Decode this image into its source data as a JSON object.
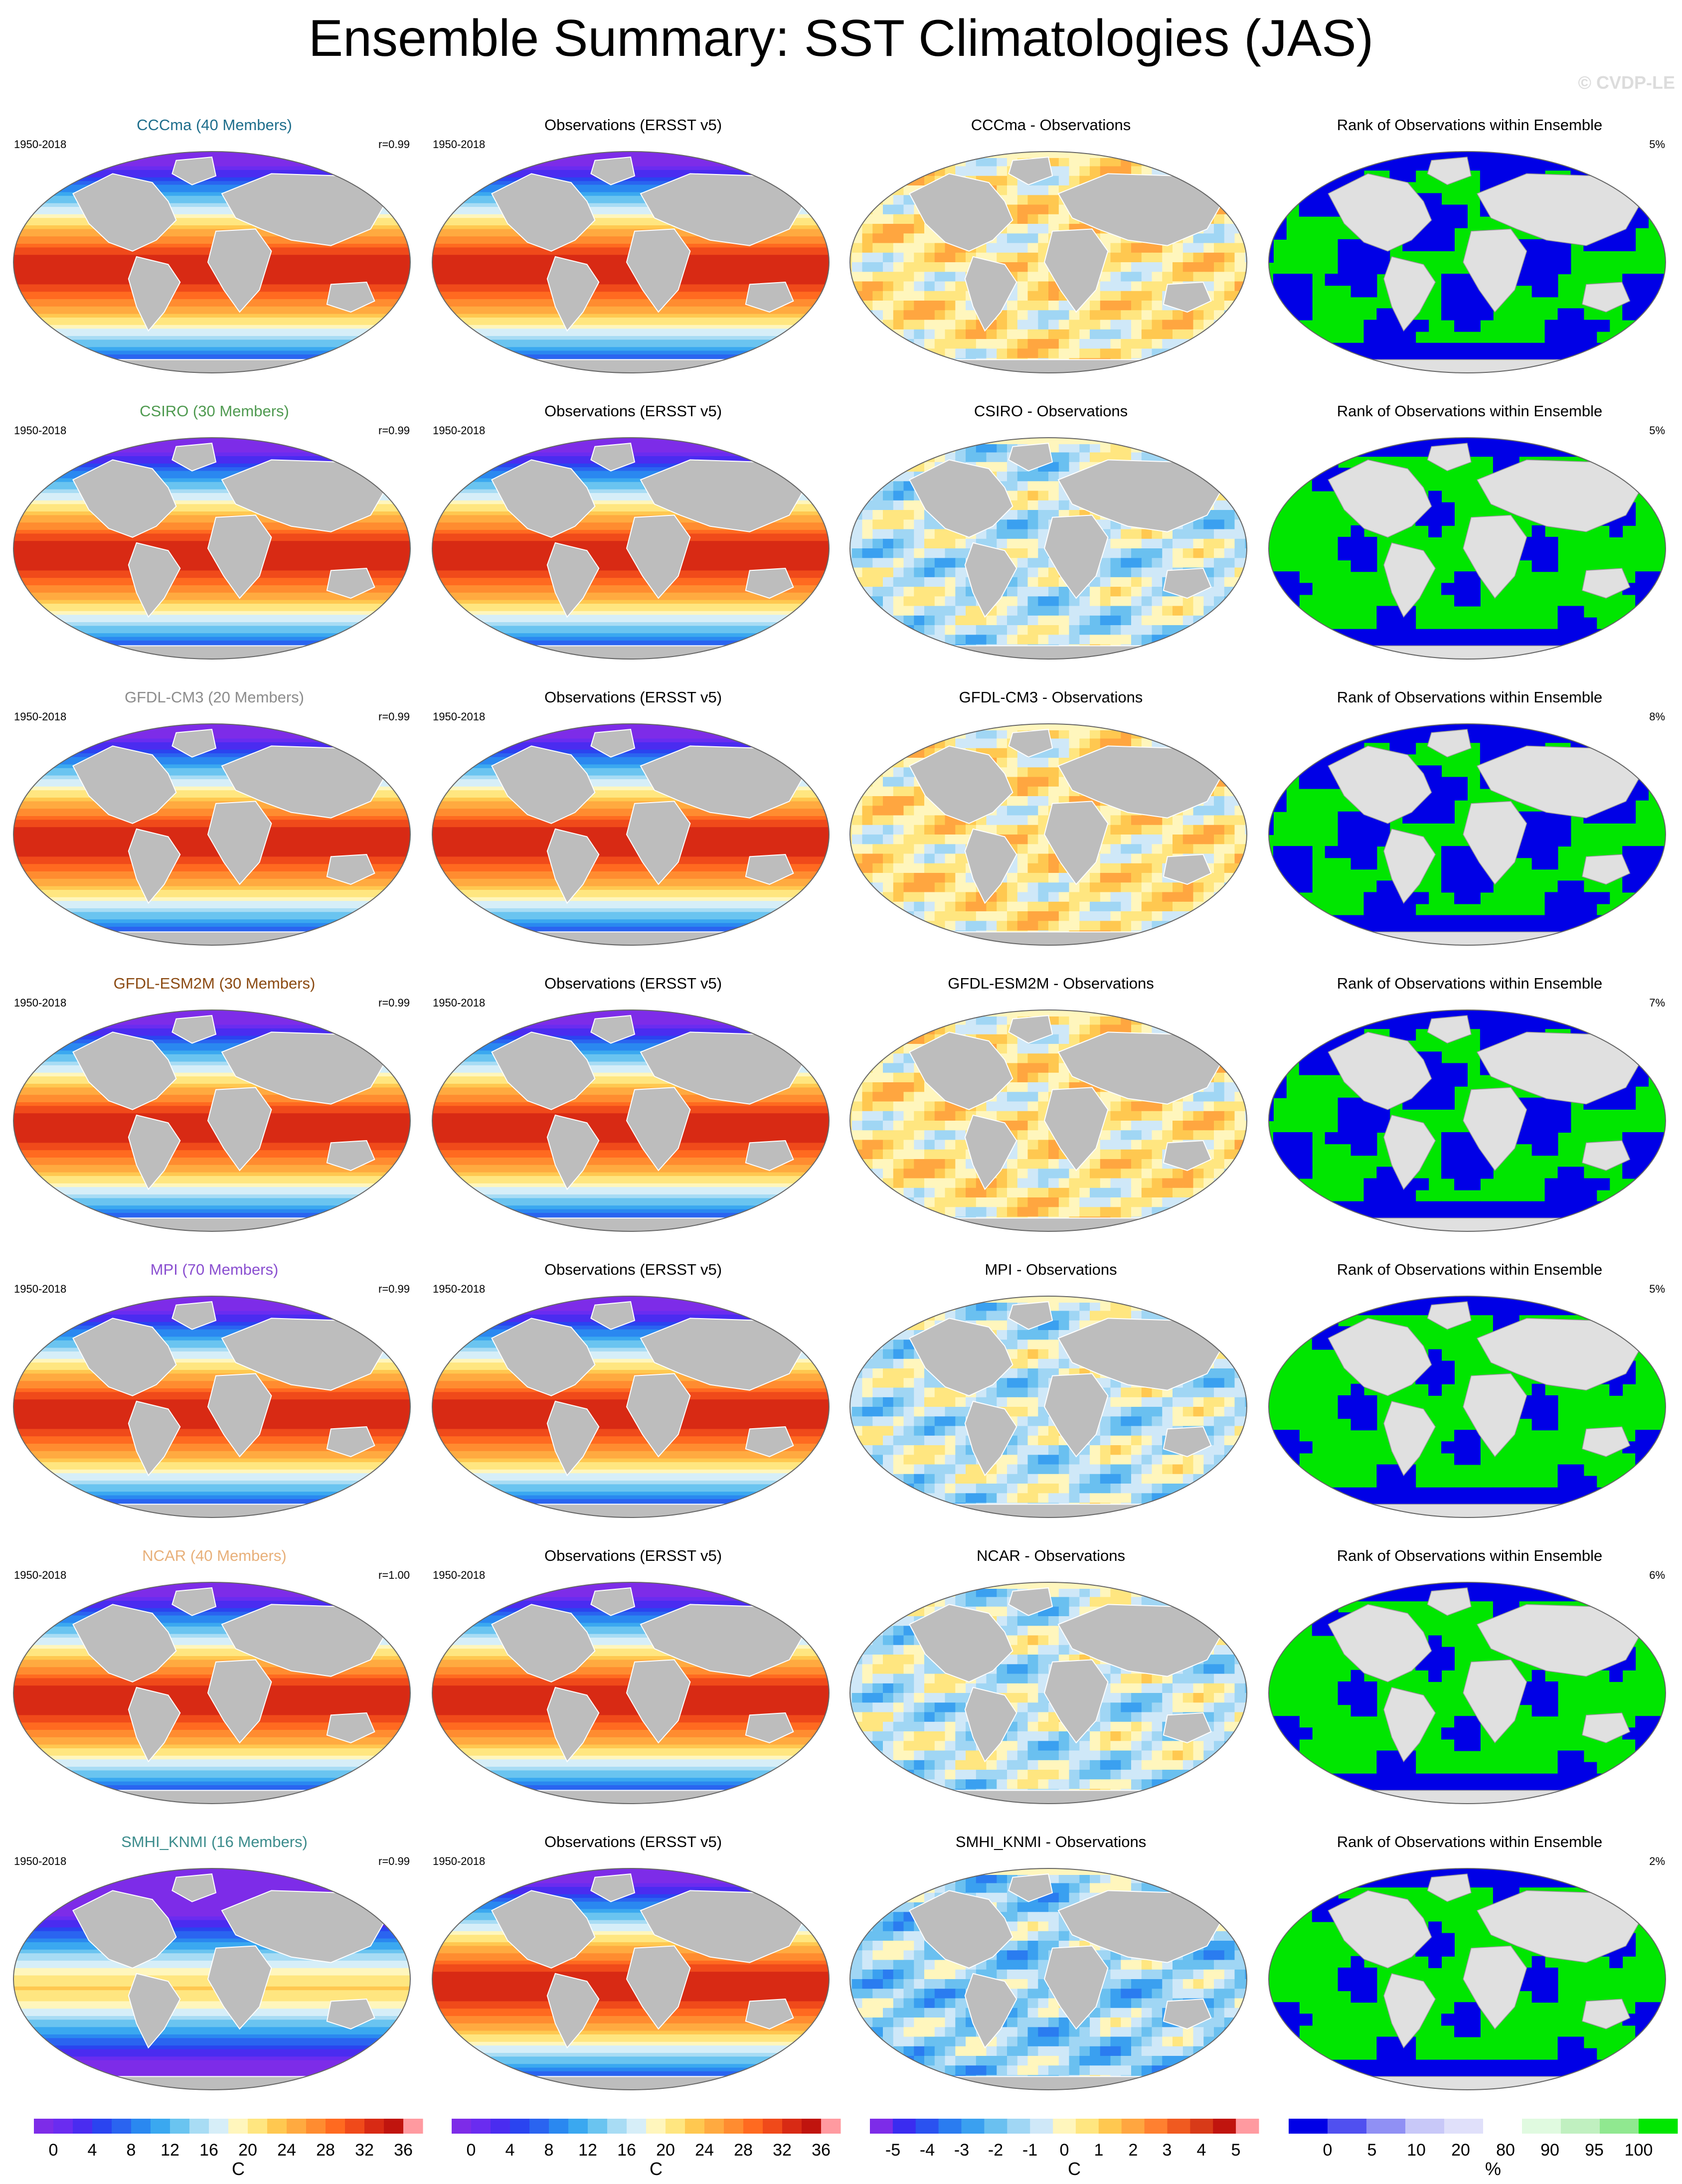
{
  "title": "Ensemble Summary: SST Climatologies (JAS)",
  "watermark": "© CVDP-LE",
  "obs_title": "Observations (ERSST v5)",
  "rank_title": "Rank of Observations within Ensemble",
  "period": "1950-2018",
  "rows": [
    {
      "ensemble_title": "CCCma (40 Members)",
      "title_color": "#1e6e8c",
      "corr": "r=0.99",
      "diff_title": "CCCma - Observations",
      "rank_pct": "5%",
      "ensemble_warmth": 0.0,
      "diff_pattern": "mixed-warm",
      "rank_pattern": "mixed"
    },
    {
      "ensemble_title": "CSIRO (30 Members)",
      "title_color": "#4f9a50",
      "corr": "r=0.99",
      "diff_title": "CSIRO - Observations",
      "rank_pct": "5%",
      "ensemble_warmth": 0.0,
      "diff_pattern": "cool",
      "rank_pattern": "mostly-high"
    },
    {
      "ensemble_title": "GFDL-CM3 (20 Members)",
      "title_color": "#8c8c8c",
      "corr": "r=0.99",
      "diff_title": "GFDL-CM3 - Observations",
      "rank_pct": "8%",
      "ensemble_warmth": 0.0,
      "diff_pattern": "mixed-warm",
      "rank_pattern": "mixed"
    },
    {
      "ensemble_title": "GFDL-ESM2M (30 Members)",
      "title_color": "#8b4a12",
      "corr": "r=0.99",
      "diff_title": "GFDL-ESM2M - Observations",
      "rank_pct": "7%",
      "ensemble_warmth": 0.0,
      "diff_pattern": "mixed-warm",
      "rank_pattern": "mixed"
    },
    {
      "ensemble_title": "MPI (70 Members)",
      "title_color": "#8a4fd0",
      "corr": "r=0.99",
      "diff_title": "MPI - Observations",
      "rank_pct": "5%",
      "ensemble_warmth": 0.0,
      "diff_pattern": "cool",
      "rank_pattern": "mostly-high"
    },
    {
      "ensemble_title": "NCAR (40 Members)",
      "title_color": "#e8b07a",
      "corr": "r=1.00",
      "diff_title": "NCAR - Observations",
      "rank_pct": "6%",
      "ensemble_warmth": 0.0,
      "diff_pattern": "cool",
      "rank_pattern": "mostly-high"
    },
    {
      "ensemble_title": "SMHI_KNMI (16 Members)",
      "title_color": "#3c8c8c",
      "corr": "r=0.99",
      "diff_title": "SMHI_KNMI - Observations",
      "rank_pct": "2%",
      "ensemble_warmth": -0.35,
      "diff_pattern": "very-cool",
      "rank_pattern": "mostly-high"
    }
  ],
  "colorbars": {
    "sst": {
      "ticks": [
        "0",
        "4",
        "8",
        "12",
        "16",
        "20",
        "24",
        "28",
        "32",
        "36"
      ],
      "unit": "C",
      "colors": [
        "#7d2ce8",
        "#6a2cf0",
        "#4a2cf0",
        "#2a44f0",
        "#2a64f0",
        "#2a88f0",
        "#3aa8f0",
        "#6ac4f0",
        "#a8dcf4",
        "#d6eef8",
        "#fff6bd",
        "#ffe680",
        "#ffc850",
        "#ffaa40",
        "#ff8c30",
        "#ff6a20",
        "#f04a1a",
        "#d82a14",
        "#c0140e",
        "#ff9aa0"
      ]
    },
    "diff": {
      "ticks": [
        "-5",
        "-4",
        "-3",
        "-2",
        "-1",
        "0",
        "1",
        "2",
        "3",
        "4",
        "5"
      ],
      "unit": "C",
      "colors": [
        "#7d2ce8",
        "#3a2cf0",
        "#2a52f0",
        "#2a7cf0",
        "#3aa0f0",
        "#6ac0f0",
        "#a0d6f4",
        "#cfe8f8",
        "#fff6bd",
        "#ffe680",
        "#ffc850",
        "#ffa640",
        "#ff8030",
        "#f05a20",
        "#d83a18",
        "#c0140e",
        "#ff9aa0"
      ]
    },
    "rank": {
      "ticks": [
        "0",
        "5",
        "10",
        "20",
        "80",
        "90",
        "95",
        "100"
      ],
      "unit": "%",
      "colors": [
        "#0000e6",
        "#5050f0",
        "#9090f4",
        "#c8c8f8",
        "#e0e0fa",
        "#ffffff",
        "#e0fae0",
        "#c0f0c0",
        "#90e890",
        "#00e600"
      ]
    }
  }
}
